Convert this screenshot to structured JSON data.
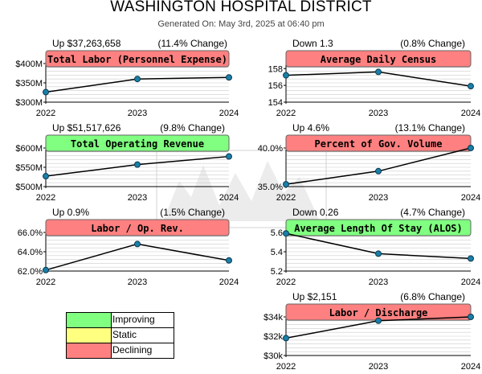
{
  "header": {
    "title": "WASHINGTON HOSPITAL DISTRICT",
    "generated": "Generated On: May 3rd, 2025 at 06:40 pm"
  },
  "colors": {
    "declining": "#ff8080",
    "improving": "#80ff80",
    "static": "#ffff80",
    "line": "#000000",
    "marker": "#1a7fa8",
    "grid": "#cccccc"
  },
  "legend": [
    {
      "label": "Improving",
      "color": "#80ff80"
    },
    {
      "label": "Static",
      "color": "#ffff80"
    },
    {
      "label": "Declining",
      "color": "#ff8080"
    }
  ],
  "chart_data": [
    {
      "type": "line",
      "title": "Total Labor (Personnel Expense)",
      "status": "declining",
      "summary_left": "Up $37,263,658",
      "summary_right": "(11.4% Change)",
      "x": [
        "2022",
        "2023",
        "2024"
      ],
      "values": [
        326000000,
        360000000,
        364000000
      ],
      "ylim": [
        300000000,
        400000000
      ],
      "ytick_values": [
        300000000,
        350000000,
        400000000
      ],
      "ytick_labels": [
        "$300M",
        "$350M",
        "$400M"
      ],
      "grid": true
    },
    {
      "type": "line",
      "title": "Average Daily Census",
      "status": "declining",
      "summary_left": "Down 1.3",
      "summary_right": "(0.8% Change)",
      "x": [
        "2022",
        "2023",
        "2024"
      ],
      "values": [
        157.2,
        157.6,
        155.9
      ],
      "ylim": [
        154,
        158.6
      ],
      "ytick_values": [
        154,
        156,
        158
      ],
      "ytick_labels": [
        "154",
        "156",
        "158"
      ],
      "grid": true
    },
    {
      "type": "line",
      "title": "Total Operating Revenue",
      "status": "improving",
      "summary_left": "Up $51,517,626",
      "summary_right": "(9.8% Change)",
      "x": [
        "2022",
        "2023",
        "2024"
      ],
      "values": [
        527000000,
        557000000,
        578000000
      ],
      "ylim": [
        500000000,
        600000000
      ],
      "ytick_values": [
        500000000,
        550000000,
        600000000
      ],
      "ytick_labels": [
        "$500M",
        "$550M",
        "$600M"
      ],
      "grid": true
    },
    {
      "type": "line",
      "title": "Percent of Gov. Volume",
      "status": "declining",
      "summary_left": "Up 4.6%",
      "summary_right": "(13.1% Change)",
      "x": [
        "2022",
        "2023",
        "2024"
      ],
      "values": [
        35.3,
        37.0,
        40.0
      ],
      "ylim": [
        35.0,
        40.0
      ],
      "ytick_values": [
        35.0,
        40.0
      ],
      "ytick_labels": [
        "35.0%",
        "40.0%"
      ],
      "grid": true
    },
    {
      "type": "line",
      "title": "Labor / Op. Rev.",
      "status": "declining",
      "summary_left": "Up 0.9%",
      "summary_right": "(1.5% Change)",
      "x": [
        "2022",
        "2023",
        "2024"
      ],
      "values": [
        62.1,
        64.8,
        63.1
      ],
      "ylim": [
        62.0,
        66.0
      ],
      "ytick_values": [
        62.0,
        64.0,
        66.0
      ],
      "ytick_labels": [
        "62.0%",
        "64.0%",
        "66.0%"
      ],
      "grid": true
    },
    {
      "type": "line",
      "title": "Average Length Of Stay (ALOS)",
      "status": "improving",
      "summary_left": "Down 0.26",
      "summary_right": "(4.7% Change)",
      "x": [
        "2022",
        "2023",
        "2024"
      ],
      "values": [
        5.59,
        5.38,
        5.33
      ],
      "ylim": [
        5.2,
        5.6
      ],
      "ytick_values": [
        5.2,
        5.4,
        5.6
      ],
      "ytick_labels": [
        "5.2",
        "5.4",
        "5.6"
      ],
      "grid": true
    },
    {
      "type": "line",
      "title": "Labor / Discharge",
      "status": "declining",
      "summary_left": "Up $2,151",
      "summary_right": "(6.8% Change)",
      "x": [
        "2022",
        "2023",
        "2024"
      ],
      "values": [
        31800,
        33600,
        34000
      ],
      "ylim": [
        30000,
        34000
      ],
      "ytick_values": [
        30000,
        32000,
        34000
      ],
      "ytick_labels": [
        "$30k",
        "$32k",
        "$34k"
      ],
      "grid": true
    }
  ]
}
